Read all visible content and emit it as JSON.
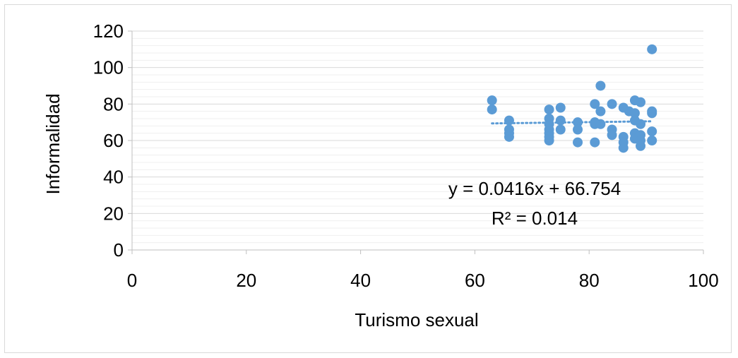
{
  "chart_data": {
    "type": "scatter",
    "xlabel": "Turismo sexual",
    "ylabel": "Informalidad",
    "xlim": [
      0,
      100
    ],
    "ylim": [
      0,
      120
    ],
    "x_ticks": [
      0,
      20,
      40,
      60,
      80,
      100
    ],
    "y_ticks": [
      0,
      20,
      40,
      60,
      80,
      100,
      120
    ],
    "grid": "horizontal major and minor",
    "point_color": "#5b9bd5",
    "points": [
      {
        "x": 63,
        "y": 82
      },
      {
        "x": 63,
        "y": 77
      },
      {
        "x": 66,
        "y": 71
      },
      {
        "x": 66,
        "y": 66
      },
      {
        "x": 66,
        "y": 64
      },
      {
        "x": 66,
        "y": 62
      },
      {
        "x": 73,
        "y": 77
      },
      {
        "x": 73,
        "y": 72
      },
      {
        "x": 73,
        "y": 69
      },
      {
        "x": 73,
        "y": 66
      },
      {
        "x": 73,
        "y": 64
      },
      {
        "x": 73,
        "y": 62
      },
      {
        "x": 73,
        "y": 60
      },
      {
        "x": 75,
        "y": 78
      },
      {
        "x": 75,
        "y": 71
      },
      {
        "x": 75,
        "y": 66
      },
      {
        "x": 78,
        "y": 70
      },
      {
        "x": 78,
        "y": 66
      },
      {
        "x": 78,
        "y": 59
      },
      {
        "x": 81,
        "y": 80
      },
      {
        "x": 81,
        "y": 70
      },
      {
        "x": 81,
        "y": 69
      },
      {
        "x": 81,
        "y": 59
      },
      {
        "x": 82,
        "y": 90
      },
      {
        "x": 82,
        "y": 76
      },
      {
        "x": 82,
        "y": 69
      },
      {
        "x": 84,
        "y": 80
      },
      {
        "x": 84,
        "y": 66
      },
      {
        "x": 84,
        "y": 63
      },
      {
        "x": 86,
        "y": 78
      },
      {
        "x": 86,
        "y": 62
      },
      {
        "x": 86,
        "y": 59
      },
      {
        "x": 86,
        "y": 56
      },
      {
        "x": 87,
        "y": 76
      },
      {
        "x": 88,
        "y": 82
      },
      {
        "x": 88,
        "y": 75
      },
      {
        "x": 88,
        "y": 71
      },
      {
        "x": 88,
        "y": 64
      },
      {
        "x": 88,
        "y": 61
      },
      {
        "x": 89,
        "y": 81
      },
      {
        "x": 89,
        "y": 69
      },
      {
        "x": 89,
        "y": 63
      },
      {
        "x": 89,
        "y": 60
      },
      {
        "x": 89,
        "y": 57
      },
      {
        "x": 91,
        "y": 110
      },
      {
        "x": 91,
        "y": 76
      },
      {
        "x": 91,
        "y": 75
      },
      {
        "x": 91,
        "y": 65
      },
      {
        "x": 91,
        "y": 60
      }
    ],
    "trendline": {
      "type": "linear",
      "slope": 0.0416,
      "intercept": 66.754,
      "x_range": [
        63,
        91
      ],
      "style": "dotted",
      "equation_label": "y = 0.0416x + 66.754",
      "r2_label": "R² = 0.014"
    }
  }
}
